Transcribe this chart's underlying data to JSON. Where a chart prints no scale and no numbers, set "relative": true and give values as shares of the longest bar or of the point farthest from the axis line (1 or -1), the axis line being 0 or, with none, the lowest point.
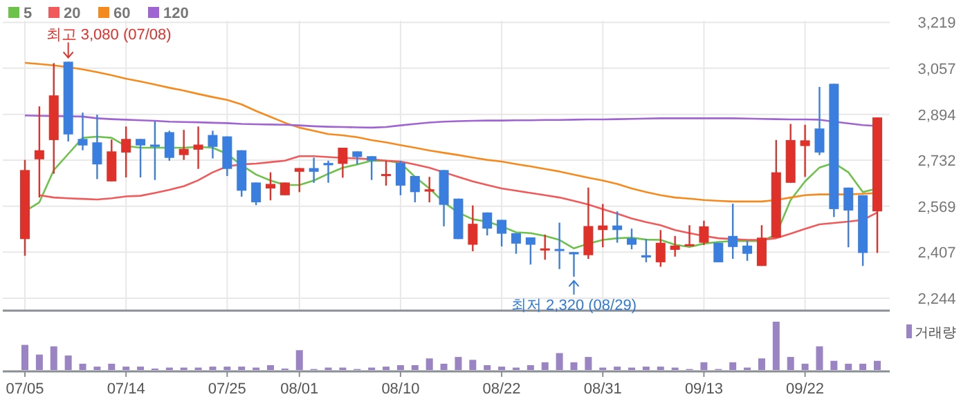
{
  "chart_data": [
    {
      "type": "candlestick",
      "categories": [
        null,
        null,
        null,
        null,
        null,
        null,
        null,
        null,
        null,
        null,
        null,
        null,
        null,
        null,
        null,
        null,
        null,
        null,
        null,
        null,
        null,
        null,
        null,
        null,
        null,
        null,
        null,
        null,
        null,
        null,
        null,
        null,
        null,
        null,
        null,
        null,
        null,
        null,
        null,
        null,
        null,
        null,
        null,
        null,
        null,
        null,
        null,
        null,
        null,
        null,
        null,
        null,
        null,
        null,
        null,
        null,
        null,
        null,
        null,
        null
      ],
      "ohlc": [
        [
          2453,
          2733,
          2394,
          2697
        ],
        [
          2735,
          2922,
          2600,
          2767
        ],
        [
          2803,
          3075,
          2684,
          2961
        ],
        [
          3080,
          3080,
          2798,
          2823
        ],
        [
          2807,
          2900,
          2767,
          2784
        ],
        [
          2795,
          2893,
          2665,
          2717
        ],
        [
          2657,
          2805,
          2657,
          2763
        ],
        [
          2759,
          2851,
          2671,
          2807
        ],
        [
          2807,
          2807,
          2671,
          2784
        ],
        [
          2787,
          2869,
          2662,
          2779
        ],
        [
          2831,
          2836,
          2730,
          2740
        ],
        [
          2750,
          2839,
          2733,
          2772
        ],
        [
          2769,
          2851,
          2701,
          2787
        ],
        [
          2821,
          2836,
          2738,
          2779
        ],
        [
          2816,
          2816,
          2676,
          2701
        ],
        [
          2767,
          2767,
          2603,
          2624
        ],
        [
          2653,
          2653,
          2573,
          2583
        ],
        [
          2632,
          2689,
          2590,
          2648
        ],
        [
          2608,
          2653,
          2608,
          2653
        ],
        [
          2691,
          2704,
          2619,
          2704
        ],
        [
          2704,
          2741,
          2652,
          2691
        ],
        [
          2722,
          2730,
          2652,
          2714
        ],
        [
          2719,
          2776,
          2670,
          2776
        ],
        [
          2763,
          2763,
          2717,
          2743
        ],
        [
          2746,
          2746,
          2662,
          2730
        ],
        [
          2680,
          2730,
          2642,
          2683
        ],
        [
          2723,
          2730,
          2608,
          2642
        ],
        [
          2676,
          2676,
          2583,
          2619
        ],
        [
          2621,
          2673,
          2583,
          2629
        ],
        [
          2697,
          2697,
          2498,
          2574
        ],
        [
          2596,
          2596,
          2453,
          2453
        ],
        [
          2433,
          2572,
          2410,
          2507
        ],
        [
          2547,
          2547,
          2466,
          2490
        ],
        [
          2521,
          2521,
          2427,
          2472
        ],
        [
          2474,
          2474,
          2401,
          2437
        ],
        [
          2459,
          2459,
          2363,
          2433
        ],
        [
          2415,
          2469,
          2380,
          2420
        ],
        [
          2418,
          2511,
          2347,
          2412
        ],
        [
          2407,
          2407,
          2320,
          2399
        ],
        [
          2396,
          2635,
          2383,
          2499
        ],
        [
          2485,
          2577,
          2424,
          2501
        ],
        [
          2501,
          2551,
          2440,
          2485
        ],
        [
          2456,
          2490,
          2417,
          2433
        ],
        [
          2396,
          2453,
          2371,
          2388
        ],
        [
          2371,
          2485,
          2355,
          2440
        ],
        [
          2415,
          2464,
          2391,
          2430
        ],
        [
          2430,
          2502,
          2430,
          2435
        ],
        [
          2440,
          2518,
          2432,
          2498
        ],
        [
          2440,
          2440,
          2371,
          2371
        ],
        [
          2464,
          2578,
          2383,
          2425
        ],
        [
          2430,
          2446,
          2376,
          2401
        ],
        [
          2358,
          2502,
          2358,
          2458
        ],
        [
          2458,
          2803,
          2458,
          2689
        ],
        [
          2652,
          2860,
          2652,
          2803
        ],
        [
          2782,
          2857,
          2673,
          2802
        ],
        [
          2844,
          2991,
          2750,
          2759
        ],
        [
          3002,
          3002,
          2531,
          2559
        ],
        [
          2635,
          2635,
          2424,
          2554
        ],
        [
          2608,
          2608,
          2358,
          2404
        ],
        [
          2551,
          2883,
          2404,
          2883
        ]
      ],
      "colors": [
        "#e0302a",
        "#e0302a",
        "#e0302a",
        "#3a7fe0",
        "#3a7fe0",
        "#3a7fe0",
        "#e0302a",
        "#e0302a",
        "#3a7fe0",
        "#3a7fe0",
        "#3a7fe0",
        "#e0302a",
        "#e0302a",
        "#3a7fe0",
        "#3a7fe0",
        "#3a7fe0",
        "#3a7fe0",
        "#e0302a",
        "#e0302a",
        "#e0302a",
        "#3a7fe0",
        "#3a7fe0",
        "#e0302a",
        "#3a7fe0",
        "#3a7fe0",
        "#e0302a",
        "#3a7fe0",
        "#3a7fe0",
        "#e0302a",
        "#3a7fe0",
        "#3a7fe0",
        "#e0302a",
        "#3a7fe0",
        "#3a7fe0",
        "#3a7fe0",
        "#3a7fe0",
        "#e0302a",
        "#3a7fe0",
        "#3a7fe0",
        "#e0302a",
        "#e0302a",
        "#3a7fe0",
        "#3a7fe0",
        "#3a7fe0",
        "#e0302a",
        "#e0302a",
        "#e0302a",
        "#e0302a",
        "#3a7fe0",
        "#3a7fe0",
        "#3a7fe0",
        "#e0302a",
        "#e0302a",
        "#e0302a",
        "#e0302a",
        "#3a7fe0",
        "#3a7fe0",
        "#3a7fe0",
        "#3a7fe0",
        "#e0302a"
      ],
      "series": [
        {
          "type": "line",
          "name": "5",
          "color": "#6cc24a",
          "values": [
            2551,
            2583,
            2697,
            2754,
            2811,
            2815,
            2811,
            2782,
            2776,
            2776,
            2776,
            2776,
            2779,
            2776,
            2754,
            2714,
            2681,
            2660,
            2644,
            2644,
            2660,
            2684,
            2705,
            2717,
            2730,
            2730,
            2722,
            2673,
            2632,
            2583,
            2547,
            2523,
            2515,
            2498,
            2477,
            2474,
            2464,
            2450,
            2420,
            2437,
            2450,
            2456,
            2458,
            2451,
            2450,
            2433,
            2425,
            2437,
            2443,
            2446,
            2446,
            2446,
            2469,
            2591,
            2657,
            2706,
            2722,
            2689,
            2619,
            2632
          ]
        },
        {
          "type": "line",
          "name": "20",
          "color": "#f05a5a",
          "values": [
            null,
            2608,
            2600,
            2597,
            2595,
            2593,
            2597,
            2604,
            2606,
            2616,
            2627,
            2640,
            2661,
            2689,
            2710,
            2717,
            2720,
            2725,
            2730,
            2746,
            2746,
            2743,
            2740,
            2738,
            2735,
            2730,
            2727,
            2717,
            2705,
            2689,
            2673,
            2657,
            2644,
            2632,
            2624,
            2616,
            2608,
            2600,
            2588,
            2575,
            2559,
            2543,
            2526,
            2513,
            2502,
            2485,
            2474,
            2464,
            2456,
            2453,
            2450,
            2450,
            2456,
            2472,
            2489,
            2505,
            2510,
            2515,
            2521,
            2547
          ]
        },
        {
          "type": "line",
          "name": "60",
          "color": "#f58a1e",
          "values": [
            3076,
            3072,
            3067,
            3061,
            3053,
            3043,
            3032,
            3020,
            3010,
            2999,
            2988,
            2978,
            2966,
            2955,
            2945,
            2929,
            2906,
            2885,
            2864,
            2847,
            2836,
            2824,
            2820,
            2813,
            2803,
            2795,
            2785,
            2776,
            2766,
            2758,
            2750,
            2741,
            2733,
            2727,
            2718,
            2710,
            2701,
            2692,
            2681,
            2670,
            2660,
            2648,
            2632,
            2619,
            2608,
            2600,
            2596,
            2591,
            2588,
            2586,
            2586,
            2586,
            2591,
            2600,
            2608,
            2611,
            2611,
            2611,
            2613,
            2616
          ]
        },
        {
          "type": "line",
          "name": "120",
          "color": "#a064d2",
          "values": [
            2890,
            2889,
            2888,
            2887,
            2886,
            2880,
            2877,
            2875,
            2873,
            2871,
            2868,
            2867,
            2866,
            2864,
            2863,
            2860,
            2859,
            2858,
            2857,
            2855,
            2852,
            2850,
            2849,
            2848,
            2847,
            2849,
            2855,
            2860,
            2865,
            2868,
            2870,
            2871,
            2872,
            2872,
            2873,
            2873,
            2874,
            2874,
            2875,
            2876,
            2876,
            2877,
            2878,
            2879,
            2880,
            2880,
            2880,
            2880,
            2880,
            2880,
            2879,
            2878,
            2877,
            2876,
            2876,
            2875,
            2868,
            2862,
            2856,
            2853
          ]
        }
      ],
      "ylim": [
        2200,
        3225
      ],
      "yticks": [
        {
          "value": 2244,
          "label": "2,244"
        },
        {
          "value": 2407,
          "label": "2,407"
        },
        {
          "value": 2569,
          "label": "2,569"
        },
        {
          "value": 2732,
          "label": "2,732"
        },
        {
          "value": 2894,
          "label": "2,894"
        },
        {
          "value": 3057,
          "label": "3,057"
        },
        {
          "value": 3219,
          "label": "3,219"
        }
      ],
      "grid": true,
      "legend": "top left",
      "tick_labels": "y",
      "annotations": [
        "최고 3,080 (07/08)",
        "최저 2,320 (08/29)"
      ]
    },
    {
      "type": "bar",
      "relative": true,
      "categories": [
        "07/05",
        null,
        null,
        null,
        null,
        null,
        null,
        "07/14",
        null,
        null,
        null,
        null,
        null,
        null,
        "07/25",
        null,
        null,
        null,
        null,
        "08/01",
        null,
        null,
        null,
        null,
        null,
        null,
        "08/10",
        null,
        null,
        null,
        null,
        null,
        null,
        "08/22",
        null,
        null,
        null,
        null,
        null,
        null,
        "08/31",
        null,
        null,
        null,
        null,
        null,
        null,
        "09/13",
        null,
        null,
        null,
        null,
        null,
        null,
        "09/22",
        null,
        null,
        null,
        null,
        null
      ],
      "series": [
        {
          "name": "거래량",
          "color": "#9b84c4",
          "values": [
            0.52,
            0.32,
            0.49,
            0.3,
            0.13,
            0.07,
            0.13,
            0.07,
            0.07,
            0.03,
            0.05,
            0.05,
            0.05,
            0.07,
            0.07,
            0.07,
            0.05,
            0.1,
            0.03,
            0.41,
            0.02,
            0.05,
            0.05,
            0.02,
            0.05,
            0.07,
            0.1,
            0.1,
            0.24,
            0.13,
            0.27,
            0.21,
            0.1,
            0.07,
            0.05,
            0.1,
            0.16,
            0.35,
            0.16,
            0.27,
            0.05,
            0.07,
            0.05,
            0.07,
            0.07,
            0.05,
            0.02,
            0.16,
            0.02,
            0.16,
            0.05,
            0.24,
            1,
            0.27,
            0.13,
            0.49,
            0.19,
            0.13,
            0.13,
            0.19
          ]
        }
      ],
      "legend": "top right",
      "tick_labels": "x"
    }
  ]
}
